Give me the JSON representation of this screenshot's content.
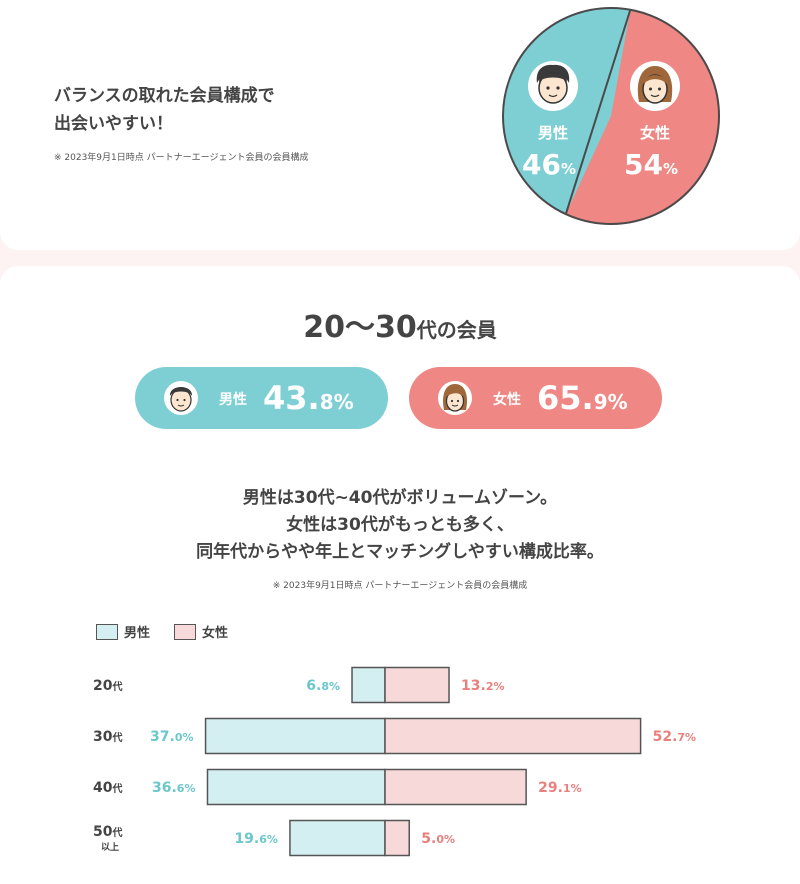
{
  "top": {
    "title_line1": "バランスの取れた会員構成で",
    "title_line2": "出会いやすい！",
    "note": "※ 2023年9月1日時点 パートナーエージェント会員の会員構成",
    "pie": {
      "male_label": "男性",
      "male_value": "46",
      "male_unit": "%",
      "female_label": "女性",
      "female_value": "54",
      "female_unit": "%"
    }
  },
  "section": {
    "title_num": "20〜30",
    "title_suffix": "代の会員",
    "male_label": "男性",
    "male_int": "43.",
    "male_dec": "8%",
    "female_label": "女性",
    "female_int": "65.",
    "female_dec": "9%",
    "desc1": "男性は30代~40代がボリュームゾーン。",
    "desc2": "女性は30代がもっとも多く、",
    "desc3": "同年代からやや年上とマッチングしやすい構成比率。",
    "note": "※ 2023年9月1日時点 パートナーエージェント会員の会員構成"
  },
  "legend": {
    "male": "男性",
    "female": "女性"
  },
  "colors": {
    "male": "#7ecfd4",
    "female": "#ef8784",
    "male_bar": "#d4eff1",
    "female_bar": "#f7d9d9",
    "male_text": "#6cc7cd",
    "female_text": "#e9807d"
  },
  "chart_data": [
    {
      "type": "pie",
      "categories": [
        "男性",
        "女性"
      ],
      "values": [
        46,
        54
      ]
    },
    {
      "type": "bar",
      "orientation": "horizontal-diverging",
      "categories": [
        "20代",
        "30代",
        "40代",
        "50代以上"
      ],
      "series": [
        {
          "name": "男性",
          "values": [
            6.8,
            37.0,
            36.6,
            19.6
          ]
        },
        {
          "name": "女性",
          "values": [
            13.2,
            52.7,
            29.1,
            5.0
          ]
        }
      ],
      "legend": "top-left"
    }
  ]
}
